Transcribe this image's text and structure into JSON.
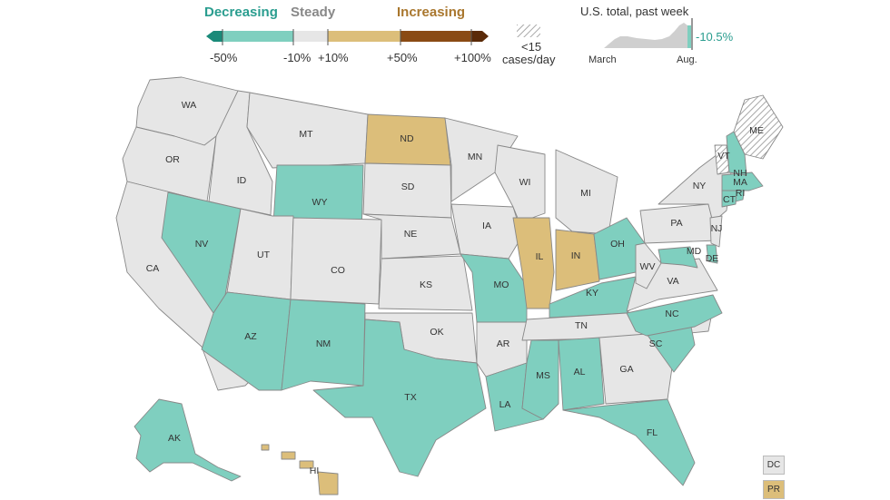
{
  "legend": {
    "decreasing": "Decreasing",
    "steady": "Steady",
    "increasing": "Increasing",
    "ticks": [
      "-50%",
      "-10%",
      "+10%",
      "+50%",
      "+100%"
    ],
    "hatch_line1": "<15",
    "hatch_line2": "cases/day",
    "colors": {
      "dec_dark": "#1a8a79",
      "dec": "#7fcfbf",
      "steady": "#e6e6e6",
      "inc": "#dcbe7a",
      "inc_dark": "#8a4a14",
      "inc_darker": "#5a2a08",
      "text_dec": "#2a9d8f",
      "text_steady": "#888888",
      "text_inc": "#a9772e"
    }
  },
  "national": {
    "title": "U.S. total, past week",
    "value": "-10.5%",
    "start_label": "March",
    "end_label": "Aug."
  },
  "territories": [
    {
      "label": "DC",
      "category": "steady"
    },
    {
      "label": "PR",
      "category": "increasing"
    }
  ],
  "states": [
    {
      "abbr": "WA",
      "category": "steady"
    },
    {
      "abbr": "OR",
      "category": "steady"
    },
    {
      "abbr": "CA",
      "category": "steady"
    },
    {
      "abbr": "NV",
      "category": "decreasing"
    },
    {
      "abbr": "ID",
      "category": "steady"
    },
    {
      "abbr": "MT",
      "category": "steady"
    },
    {
      "abbr": "WY",
      "category": "decreasing"
    },
    {
      "abbr": "UT",
      "category": "steady"
    },
    {
      "abbr": "AZ",
      "category": "decreasing"
    },
    {
      "abbr": "CO",
      "category": "steady"
    },
    {
      "abbr": "NM",
      "category": "decreasing"
    },
    {
      "abbr": "ND",
      "category": "increasing"
    },
    {
      "abbr": "SD",
      "category": "steady"
    },
    {
      "abbr": "NE",
      "category": "steady"
    },
    {
      "abbr": "KS",
      "category": "steady"
    },
    {
      "abbr": "OK",
      "category": "steady"
    },
    {
      "abbr": "TX",
      "category": "decreasing"
    },
    {
      "abbr": "MN",
      "category": "steady"
    },
    {
      "abbr": "IA",
      "category": "steady"
    },
    {
      "abbr": "MO",
      "category": "decreasing"
    },
    {
      "abbr": "AR",
      "category": "steady"
    },
    {
      "abbr": "LA",
      "category": "decreasing"
    },
    {
      "abbr": "WI",
      "category": "steady"
    },
    {
      "abbr": "IL",
      "category": "increasing"
    },
    {
      "abbr": "MI",
      "category": "steady"
    },
    {
      "abbr": "IN",
      "category": "increasing"
    },
    {
      "abbr": "OH",
      "category": "decreasing"
    },
    {
      "abbr": "KY",
      "category": "decreasing"
    },
    {
      "abbr": "TN",
      "category": "steady"
    },
    {
      "abbr": "MS",
      "category": "decreasing"
    },
    {
      "abbr": "AL",
      "category": "decreasing"
    },
    {
      "abbr": "GA",
      "category": "steady"
    },
    {
      "abbr": "FL",
      "category": "decreasing"
    },
    {
      "abbr": "SC",
      "category": "decreasing"
    },
    {
      "abbr": "NC",
      "category": "decreasing"
    },
    {
      "abbr": "VA",
      "category": "steady"
    },
    {
      "abbr": "WV",
      "category": "steady"
    },
    {
      "abbr": "PA",
      "category": "steady"
    },
    {
      "abbr": "NY",
      "category": "steady"
    },
    {
      "abbr": "NJ",
      "category": "steady"
    },
    {
      "abbr": "MD",
      "category": "decreasing"
    },
    {
      "abbr": "DE",
      "category": "decreasing"
    },
    {
      "abbr": "CT",
      "category": "decreasing"
    },
    {
      "abbr": "RI",
      "category": "decreasing"
    },
    {
      "abbr": "MA",
      "category": "decreasing"
    },
    {
      "abbr": "VT",
      "category": "low"
    },
    {
      "abbr": "NH",
      "category": "decreasing"
    },
    {
      "abbr": "ME",
      "category": "low"
    },
    {
      "abbr": "AK",
      "category": "decreasing"
    },
    {
      "abbr": "HI",
      "category": "increasing"
    }
  ]
}
